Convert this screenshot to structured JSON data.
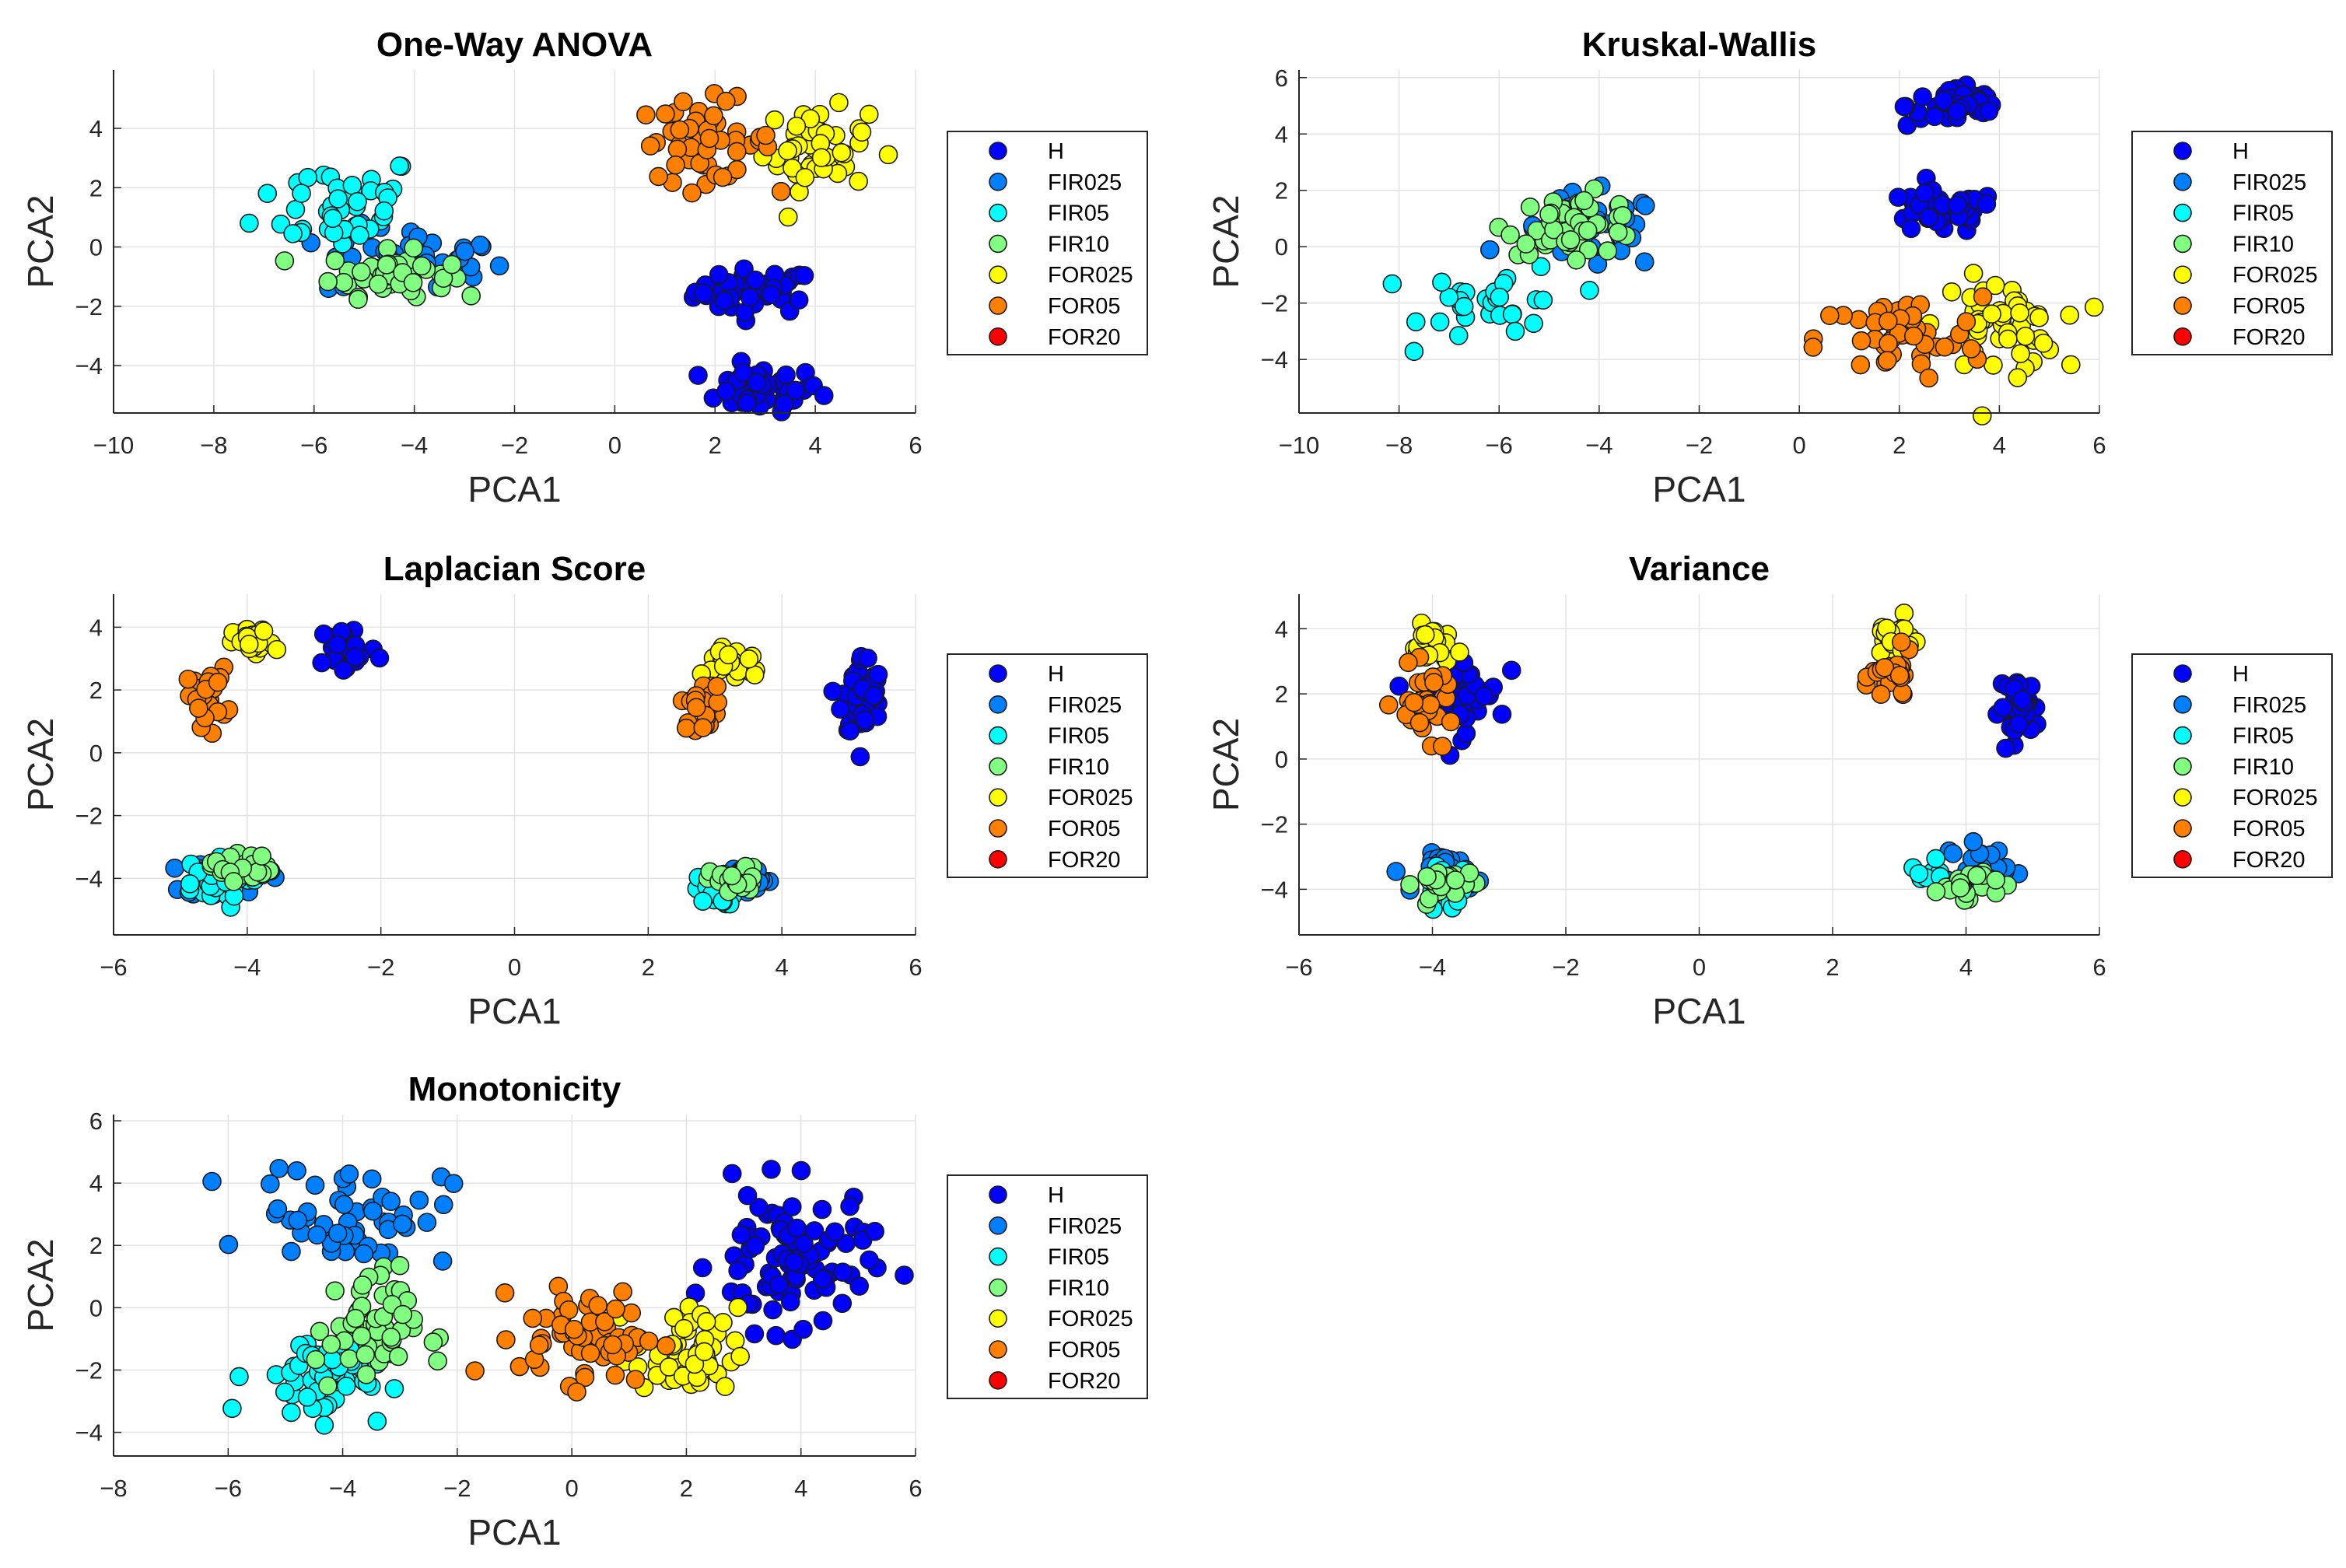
{
  "series_colors": {
    "H": "#0000ff",
    "FIR025": "#0080ff",
    "FIR05": "#00ffff",
    "FIR10": "#80ff80",
    "FOR025": "#ffff00",
    "FOR05": "#ff8000",
    "FOR20": "#ff0000"
  },
  "chart_data": [
    {
      "type": "scatter",
      "title": "One-Way ANOVA",
      "xlabel": "PCA1",
      "ylabel": "PCA2",
      "xlim": [
        -10,
        6
      ],
      "ylim": [
        -5.6,
        5.97
      ],
      "grid": true,
      "legend_placement": "outside-right",
      "xticks": [
        "−10",
        "−8",
        "−6",
        "−4",
        "−2",
        "0",
        "2",
        "4",
        "6"
      ],
      "xtick_values": [
        -10,
        -8,
        -6,
        -4,
        -2,
        0,
        2,
        4,
        6
      ],
      "yticks": [
        "−4",
        "−2",
        "0",
        "2",
        "4"
      ],
      "ytick_values": [
        -4,
        -2,
        0,
        2,
        4
      ],
      "legend": [
        "H",
        "FIR025",
        "FIR05",
        "FIR10",
        "FOR025",
        "FOR05",
        "FOR20"
      ],
      "series": [
        {
          "name": "H",
          "clusters": [
            {
              "cx": 2.8,
              "cy": -1.5,
              "sx": 0.8,
              "sy": 0.5,
              "n": 45
            },
            {
              "cx": 2.9,
              "cy": -4.8,
              "sx": 0.8,
              "sy": 0.5,
              "n": 40
            }
          ]
        },
        {
          "name": "FIR025",
          "clusters": [
            {
              "cx": -4,
              "cy": -0.5,
              "sx": 1.2,
              "sy": 0.8,
              "n": 40
            }
          ]
        },
        {
          "name": "FIR05",
          "clusters": [
            {
              "cx": -5.5,
              "cy": 1.5,
              "sx": 1.1,
              "sy": 1.1,
              "n": 45
            }
          ]
        },
        {
          "name": "FIR10",
          "clusters": [
            {
              "cx": -4.5,
              "cy": -0.9,
              "sx": 0.8,
              "sy": 0.5,
              "n": 50
            }
          ]
        },
        {
          "name": "FOR025",
          "clusters": [
            {
              "cx": 4.0,
              "cy": 3.3,
              "sx": 0.7,
              "sy": 0.9,
              "n": 50
            }
          ]
        },
        {
          "name": "FOR05",
          "clusters": [
            {
              "cx": 1.8,
              "cy": 3.6,
              "sx": 0.9,
              "sy": 0.9,
              "n": 50
            }
          ]
        },
        {
          "name": "FOR20",
          "clusters": []
        }
      ]
    },
    {
      "type": "scatter",
      "title": "Kruskal-Wallis",
      "xlabel": "PCA1",
      "ylabel": "PCA2",
      "xlim": [
        -10,
        6
      ],
      "ylim": [
        -5.9,
        6.27
      ],
      "grid": true,
      "legend_placement": "outside-right",
      "xticks": [
        "−10",
        "−8",
        "−6",
        "−4",
        "−2",
        "0",
        "2",
        "4",
        "6"
      ],
      "xtick_values": [
        -10,
        -8,
        -6,
        -4,
        -2,
        0,
        2,
        4,
        6
      ],
      "yticks": [
        "−4",
        "−2",
        "0",
        "2",
        "4",
        "6"
      ],
      "ytick_values": [
        -4,
        -2,
        0,
        2,
        4,
        6
      ],
      "legend": [
        "H",
        "FIR025",
        "FIR05",
        "FIR10",
        "FOR025",
        "FOR05",
        "FOR20"
      ],
      "series": [
        {
          "name": "H",
          "clusters": [
            {
              "cx": 3.2,
              "cy": 5.0,
              "sx": 0.7,
              "sy": 0.5,
              "n": 45
            },
            {
              "cx": 2.8,
              "cy": 1.2,
              "sx": 0.8,
              "sy": 0.5,
              "n": 40
            }
          ]
        },
        {
          "name": "FIR025",
          "clusters": [
            {
              "cx": -4.2,
              "cy": 0.5,
              "sx": 1.0,
              "sy": 0.9,
              "n": 35
            }
          ]
        },
        {
          "name": "FIR05",
          "clusters": [
            {
              "cx": -6.0,
              "cy": -2.0,
              "sx": 1.0,
              "sy": 0.9,
              "n": 30
            }
          ]
        },
        {
          "name": "FIR10",
          "clusters": [
            {
              "cx": -4.5,
              "cy": 0.8,
              "sx": 0.9,
              "sy": 0.7,
              "n": 50
            }
          ]
        },
        {
          "name": "FOR025",
          "clusters": [
            {
              "cx": 4.0,
              "cy": -2.8,
              "sx": 0.8,
              "sy": 1.1,
              "n": 50
            }
          ]
        },
        {
          "name": "FOR05",
          "clusters": [
            {
              "cx": 2.0,
              "cy": -3.3,
              "sx": 1.1,
              "sy": 1.0,
              "n": 45
            }
          ]
        },
        {
          "name": "FOR20",
          "clusters": []
        }
      ]
    },
    {
      "type": "scatter",
      "title": "Laplacian Score",
      "xlabel": "PCA1",
      "ylabel": "PCA2",
      "xlim": [
        -6,
        6
      ],
      "ylim": [
        -5.8,
        5.05
      ],
      "grid": true,
      "legend_placement": "outside-right",
      "xticks": [
        "−6",
        "−4",
        "−2",
        "0",
        "2",
        "4",
        "6"
      ],
      "xtick_values": [
        -6,
        -4,
        -2,
        0,
        2,
        4,
        6
      ],
      "yticks": [
        "−4",
        "−2",
        "0",
        "2",
        "4"
      ],
      "ytick_values": [
        -4,
        -2,
        0,
        2,
        4
      ],
      "legend": [
        "H",
        "FIR025",
        "FIR05",
        "FIR10",
        "FOR025",
        "FOR05",
        "FOR20"
      ],
      "series": [
        {
          "name": "H",
          "clusters": [
            {
              "cx": -2.5,
              "cy": 3.3,
              "sx": 0.3,
              "sy": 0.6,
              "n": 30
            },
            {
              "cx": 5.2,
              "cy": 1.8,
              "sx": 0.2,
              "sy": 0.9,
              "n": 50
            }
          ]
        },
        {
          "name": "FIR025",
          "clusters": [
            {
              "cx": -4.3,
              "cy": -4.0,
              "sx": 0.4,
              "sy": 0.4,
              "n": 25
            },
            {
              "cx": 3.4,
              "cy": -4.0,
              "sx": 0.3,
              "sy": 0.3,
              "n": 30
            }
          ]
        },
        {
          "name": "FIR05",
          "clusters": [
            {
              "cx": -4.6,
              "cy": -4.2,
              "sx": 0.4,
              "sy": 0.5,
              "n": 25
            },
            {
              "cx": 3.0,
              "cy": -4.4,
              "sx": 0.2,
              "sy": 0.3,
              "n": 25
            }
          ]
        },
        {
          "name": "FIR10",
          "clusters": [
            {
              "cx": -4.1,
              "cy": -3.6,
              "sx": 0.3,
              "sy": 0.3,
              "n": 30
            },
            {
              "cx": 3.3,
              "cy": -4.1,
              "sx": 0.25,
              "sy": 0.3,
              "n": 35
            }
          ]
        },
        {
          "name": "FOR025",
          "clusters": [
            {
              "cx": -3.9,
              "cy": 3.5,
              "sx": 0.2,
              "sy": 0.3,
              "n": 25
            },
            {
              "cx": 3.3,
              "cy": 2.9,
              "sx": 0.3,
              "sy": 0.4,
              "n": 30
            }
          ]
        },
        {
          "name": "FOR05",
          "clusters": [
            {
              "cx": -4.6,
              "cy": 1.8,
              "sx": 0.2,
              "sy": 0.6,
              "n": 25
            },
            {
              "cx": 2.8,
              "cy": 1.5,
              "sx": 0.2,
              "sy": 0.5,
              "n": 25
            }
          ]
        },
        {
          "name": "FOR20",
          "clusters": []
        }
      ]
    },
    {
      "type": "scatter",
      "title": "Variance",
      "xlabel": "PCA1",
      "ylabel": "PCA2",
      "xlim": [
        -6,
        6
      ],
      "ylim": [
        -5.4,
        5.06
      ],
      "grid": true,
      "legend_placement": "outside-right",
      "xticks": [
        "−6",
        "−4",
        "−2",
        "0",
        "2",
        "4",
        "6"
      ],
      "xtick_values": [
        -6,
        -4,
        -2,
        0,
        2,
        4,
        6
      ],
      "yticks": [
        "−4",
        "−2",
        "0",
        "2",
        "4"
      ],
      "ytick_values": [
        -4,
        -2,
        0,
        2,
        4
      ],
      "legend": [
        "H",
        "FIR025",
        "FIR05",
        "FIR10",
        "FOR025",
        "FOR05",
        "FOR20"
      ],
      "series": [
        {
          "name": "H",
          "clusters": [
            {
              "cx": -3.6,
              "cy": 2.0,
              "sx": 0.4,
              "sy": 0.8,
              "n": 50
            },
            {
              "cx": 4.8,
              "cy": 1.6,
              "sx": 0.2,
              "sy": 0.6,
              "n": 35
            }
          ]
        },
        {
          "name": "FIR025",
          "clusters": [
            {
              "cx": -3.7,
              "cy": -3.5,
              "sx": 0.3,
              "sy": 0.4,
              "n": 25
            },
            {
              "cx": 4.2,
              "cy": -3.2,
              "sx": 0.3,
              "sy": 0.4,
              "n": 25
            }
          ]
        },
        {
          "name": "FIR05",
          "clusters": [
            {
              "cx": -3.8,
              "cy": -4.0,
              "sx": 0.3,
              "sy": 0.5,
              "n": 15
            },
            {
              "cx": 3.6,
              "cy": -3.6,
              "sx": 0.3,
              "sy": 0.3,
              "n": 10
            }
          ]
        },
        {
          "name": "FIR10",
          "clusters": [
            {
              "cx": -3.8,
              "cy": -3.8,
              "sx": 0.3,
              "sy": 0.3,
              "n": 30
            },
            {
              "cx": 4.0,
              "cy": -3.8,
              "sx": 0.3,
              "sy": 0.3,
              "n": 30
            }
          ]
        },
        {
          "name": "FOR025",
          "clusters": [
            {
              "cx": -4.0,
              "cy": 3.5,
              "sx": 0.2,
              "sy": 0.4,
              "n": 25
            },
            {
              "cx": 2.9,
              "cy": 3.7,
              "sx": 0.2,
              "sy": 0.4,
              "n": 25
            }
          ]
        },
        {
          "name": "FOR05",
          "clusters": [
            {
              "cx": -4.1,
              "cy": 1.7,
              "sx": 0.3,
              "sy": 0.7,
              "n": 35
            },
            {
              "cx": 2.9,
              "cy": 2.5,
              "sx": 0.2,
              "sy": 0.5,
              "n": 30
            }
          ]
        },
        {
          "name": "FOR20",
          "clusters": []
        }
      ]
    },
    {
      "type": "scatter",
      "title": "Monotonicity",
      "xlabel": "PCA1",
      "ylabel": "PCA2",
      "xlim": [
        -8,
        6
      ],
      "ylim": [
        -4.76,
        6.2
      ],
      "grid": true,
      "legend_placement": "outside-right",
      "xticks": [
        "−8",
        "−6",
        "−4",
        "−2",
        "0",
        "2",
        "4",
        "6"
      ],
      "xtick_values": [
        -8,
        -6,
        -4,
        -2,
        0,
        2,
        4,
        6
      ],
      "yticks": [
        "−4",
        "−2",
        "0",
        "2",
        "4",
        "6"
      ],
      "ytick_values": [
        -4,
        -2,
        0,
        2,
        4,
        6
      ],
      "legend": [
        "H",
        "FIR025",
        "FIR05",
        "FIR10",
        "FOR025",
        "FOR05",
        "FOR20"
      ],
      "series": [
        {
          "name": "H",
          "clusters": [
            {
              "cx": 3.8,
              "cy": 1.5,
              "sx": 0.9,
              "sy": 1.5,
              "n": 90
            }
          ]
        },
        {
          "name": "FIR025",
          "clusters": [
            {
              "cx": -3.8,
              "cy": 3.0,
              "sx": 1.1,
              "sy": 1.1,
              "n": 55
            }
          ]
        },
        {
          "name": "FIR05",
          "clusters": [
            {
              "cx": -4.4,
              "cy": -2.2,
              "sx": 0.8,
              "sy": 0.9,
              "n": 50
            }
          ]
        },
        {
          "name": "FIR10",
          "clusters": [
            {
              "cx": -3.6,
              "cy": -0.7,
              "sx": 0.6,
              "sy": 1.3,
              "n": 50
            }
          ]
        },
        {
          "name": "FOR025",
          "clusters": [
            {
              "cx": 2.0,
              "cy": -1.5,
              "sx": 0.6,
              "sy": 1.0,
              "n": 55
            }
          ]
        },
        {
          "name": "FOR05",
          "clusters": [
            {
              "cx": 0.3,
              "cy": -0.9,
              "sx": 0.8,
              "sy": 1.0,
              "n": 60
            }
          ]
        },
        {
          "name": "FOR20",
          "clusters": []
        }
      ]
    }
  ]
}
